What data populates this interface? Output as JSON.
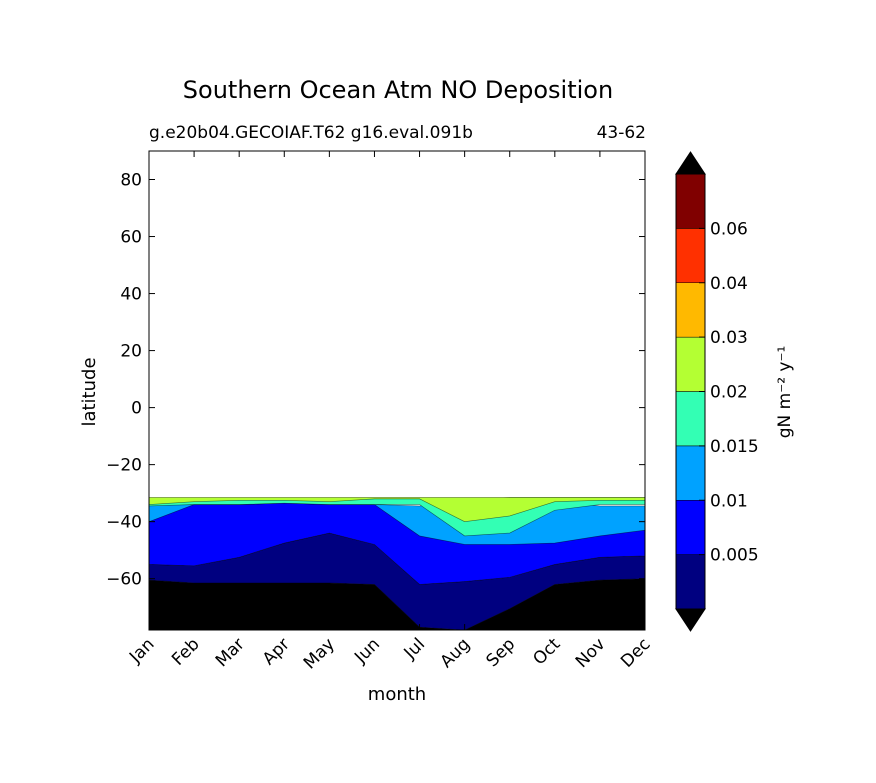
{
  "chart_data": {
    "type": "heatmap",
    "title": "Southern Ocean Atm NO Deposition",
    "subtitle_left": "g.e20b04.GECOIAF.T62 g16.eval.091b",
    "subtitle_right": "43-62",
    "xlabel": "month",
    "ylabel": "latitude",
    "x_categories": [
      "Jan",
      "Feb",
      "Mar",
      "Apr",
      "May",
      "Jun",
      "Jul",
      "Aug",
      "Sep",
      "Oct",
      "Nov",
      "Dec"
    ],
    "y_ticks": [
      80,
      60,
      40,
      20,
      0,
      -20,
      -40,
      -60
    ],
    "y_tick_labels": [
      "80",
      "60",
      "40",
      "20",
      "0",
      "−20",
      "−40",
      "−60"
    ],
    "ylim": [
      -78,
      90
    ],
    "data_lat_range": [
      -78,
      -31.5
    ],
    "colorbar": {
      "label": "gN m⁻² y⁻¹",
      "tick_labels": [
        "0.005",
        "0.01",
        "0.015",
        "0.02",
        "0.03",
        "0.04",
        "0.06"
      ],
      "levels": [
        0,
        0.005,
        0.01,
        0.015,
        0.02,
        0.03,
        0.04,
        0.06,
        0.08
      ],
      "colors": [
        "#000080",
        "#0000ff",
        "#00a2ff",
        "#33ffb4",
        "#b4ff33",
        "#ffb900",
        "#ff3000",
        "#800000"
      ],
      "under_color": "#000000",
      "over_color": "#000000",
      "extend": "both"
    },
    "contour_bands": [
      {
        "level": "below 0",
        "color": "#000000",
        "lower": [
          -78,
          -78,
          -78,
          -78,
          -78,
          -78,
          -78,
          -78,
          -78,
          -78,
          -78,
          -78
        ],
        "upper": [
          -60.5,
          -61.5,
          -61.5,
          -61.5,
          -61.5,
          -62,
          -77,
          -78,
          -70.5,
          -62,
          -60.5,
          -60
        ]
      },
      {
        "level": "0-0.005",
        "color": "#000080",
        "lower": [
          -60.5,
          -61.5,
          -61.5,
          -61.5,
          -61.5,
          -62,
          -77,
          -78,
          -70.5,
          -62,
          -60.5,
          -60
        ],
        "upper": [
          -55,
          -55.5,
          -52.5,
          -47.5,
          -44,
          -48,
          -62,
          -61,
          -59.5,
          -55,
          -52.5,
          -52
        ]
      },
      {
        "level": "0.005-0.01",
        "color": "#0000ff",
        "lower": [
          -55,
          -55.5,
          -52.5,
          -47.5,
          -44,
          -48,
          -62,
          -61,
          -59.5,
          -55,
          -52.5,
          -52
        ],
        "upper": [
          -34,
          -34,
          -34,
          -33.5,
          -34,
          -34,
          -35,
          -39,
          -40,
          -36,
          -35,
          -35
        ]
      },
      {
        "level": "0.01-0.015",
        "color": "#00a2ff",
        "lower": [
          -40,
          -34,
          -34,
          -33.5,
          -34,
          -34,
          -45,
          -48,
          -48,
          -47.5,
          -45,
          -43
        ],
        "upper": [
          -34,
          -34,
          -34,
          -33.5,
          -34,
          -34,
          -34.5,
          -33,
          -32.5,
          -33,
          -34.5,
          -34.5
        ]
      },
      {
        "level": "0.015-0.02",
        "color": "#33ffb4",
        "lower": [
          -34.5,
          -34,
          -34,
          -33.5,
          -34,
          -34,
          -34,
          -45,
          -44,
          -36,
          -34,
          -34
        ],
        "upper": [
          -32,
          -32.5,
          -32,
          -32,
          -32.5,
          -32,
          -32,
          -32.5,
          -31.5,
          -31.5,
          -31.5,
          -31.5
        ]
      },
      {
        "level": "0.02-0.03",
        "color": "#b4ff33",
        "lower": [
          -34,
          -33,
          -32.5,
          -32.5,
          -33,
          -32,
          -32,
          -40,
          -38,
          -33,
          -32.5,
          -32.5
        ],
        "upper": [
          -31.5,
          -31.5,
          -31.5,
          -31.5,
          -31.5,
          -31.5,
          -31.5,
          -31.5,
          -31.5,
          -31.5,
          -31.5,
          -31.5
        ]
      }
    ]
  }
}
